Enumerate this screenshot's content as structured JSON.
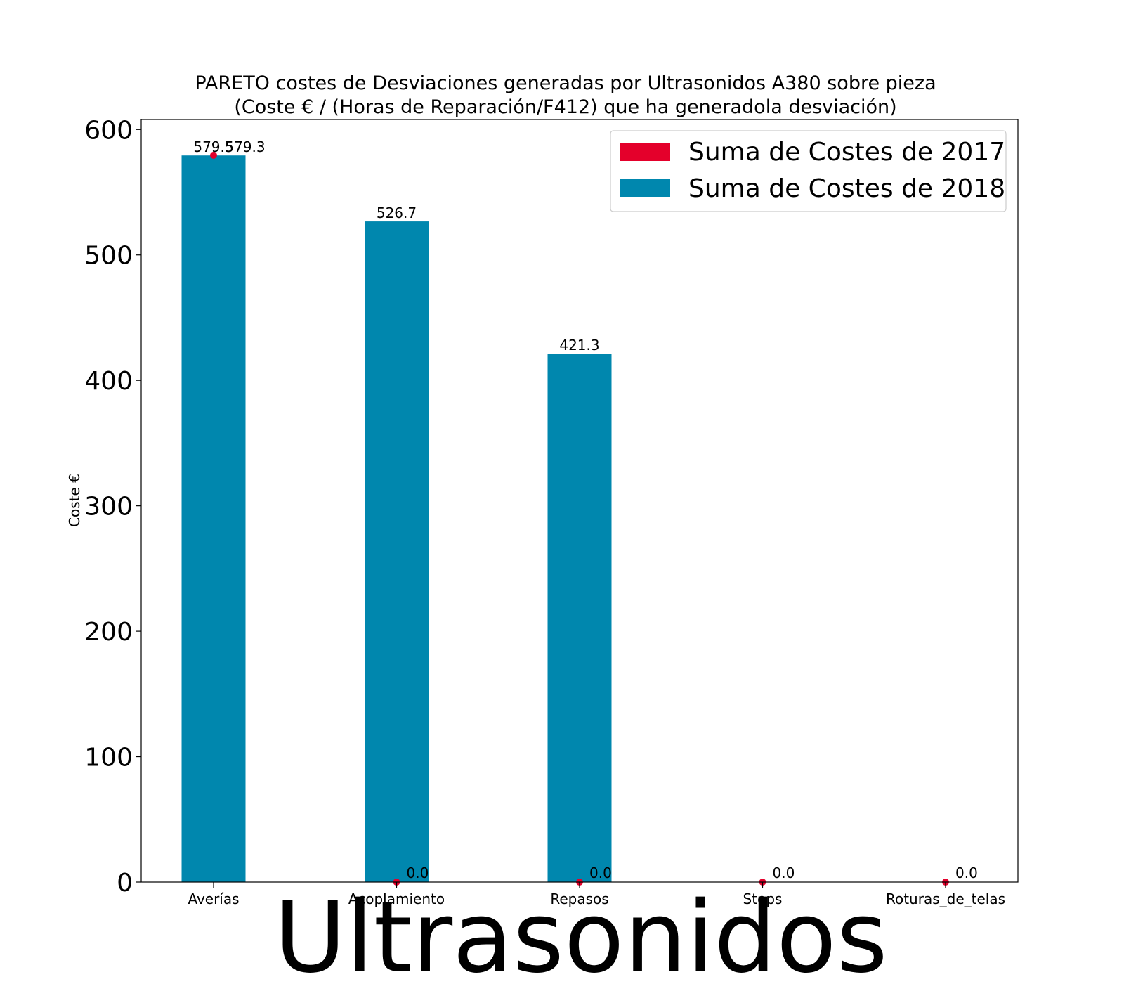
{
  "chart_data": {
    "type": "bar",
    "title": "PARETO costes de Desviaciones  generadas  por Ultrasonidos A380 sobre pieza",
    "subtitle": "(Coste € / (Horas de Reparación/F412) que ha generadola desviación)",
    "xlabel": "Ultrasonidos",
    "ylabel": "Coste €",
    "ylim": [
      0,
      608
    ],
    "yticks": [
      0,
      100,
      200,
      300,
      400,
      500,
      600
    ],
    "categories": [
      "Averías",
      "Acoplamiento",
      "Repasos",
      "Steps",
      "Roturas_de_telas"
    ],
    "series": [
      {
        "name": "Suma de Costes de 2017",
        "color": "#e4002b",
        "values": [
          579.5,
          0.0,
          0.0,
          0.0,
          0.0
        ],
        "labels": [
          "579.5",
          "0.0",
          "0.0",
          "0.0",
          "0.0"
        ]
      },
      {
        "name": "Suma de Costes de 2018",
        "color": "#0087ae",
        "values": [
          579.3,
          526.7,
          421.3,
          null,
          null
        ],
        "labels": [
          "579.3",
          "526.7",
          "421.3",
          null,
          null
        ]
      }
    ],
    "legend": "top-right",
    "grid": false
  }
}
